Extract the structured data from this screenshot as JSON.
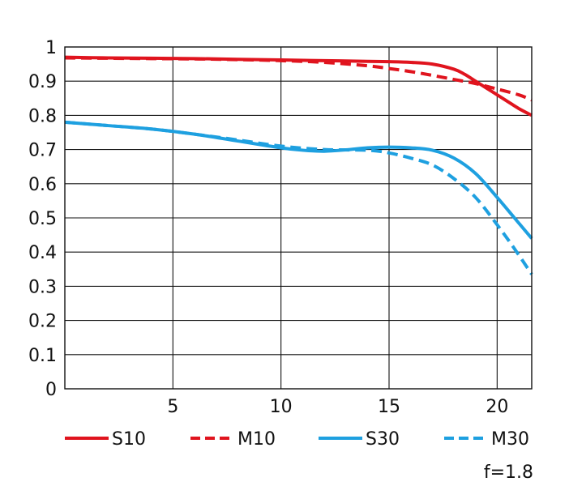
{
  "chart_data": {
    "type": "line",
    "title": "",
    "xlabel": "",
    "ylabel": "",
    "xlim": [
      0,
      21.6
    ],
    "ylim": [
      0,
      1
    ],
    "grid": true,
    "x_ticks": [
      5,
      10,
      15,
      20
    ],
    "y_ticks": [
      0,
      0.1,
      0.2,
      0.3,
      0.4,
      0.5,
      0.6,
      0.7,
      0.8,
      0.9,
      1
    ],
    "x_tick_labels": [
      "5",
      "10",
      "15",
      "20"
    ],
    "y_tick_labels": [
      "0",
      "0.1",
      "0.2",
      "0.3",
      "0.4",
      "0.5",
      "0.6",
      "0.7",
      "0.8",
      "0.9",
      "1"
    ],
    "annotation": "f=1.8",
    "legend_position": "bottom",
    "series": [
      {
        "name": "S10",
        "color": "#e0141e",
        "style": "solid",
        "points": [
          [
            0,
            0.97
          ],
          [
            2,
            0.968
          ],
          [
            4,
            0.967
          ],
          [
            6,
            0.966
          ],
          [
            8,
            0.964
          ],
          [
            10,
            0.962
          ],
          [
            12,
            0.96
          ],
          [
            14,
            0.958
          ],
          [
            15,
            0.957
          ],
          [
            16,
            0.955
          ],
          [
            17,
            0.95
          ],
          [
            18,
            0.935
          ],
          [
            18.5,
            0.92
          ],
          [
            19,
            0.9
          ],
          [
            19.5,
            0.88
          ],
          [
            20,
            0.86
          ],
          [
            20.5,
            0.84
          ],
          [
            21,
            0.82
          ],
          [
            21.6,
            0.8
          ]
        ]
      },
      {
        "name": "M10",
        "color": "#e0141e",
        "style": "dashed",
        "points": [
          [
            0,
            0.968
          ],
          [
            2,
            0.967
          ],
          [
            4,
            0.966
          ],
          [
            6,
            0.965
          ],
          [
            8,
            0.963
          ],
          [
            10,
            0.96
          ],
          [
            12,
            0.955
          ],
          [
            14,
            0.945
          ],
          [
            15,
            0.937
          ],
          [
            16,
            0.928
          ],
          [
            17,
            0.917
          ],
          [
            18,
            0.905
          ],
          [
            19,
            0.893
          ],
          [
            20,
            0.877
          ],
          [
            21,
            0.86
          ],
          [
            21.6,
            0.845
          ]
        ]
      },
      {
        "name": "S30",
        "color": "#1ea0e0",
        "style": "solid",
        "points": [
          [
            0,
            0.78
          ],
          [
            2,
            0.77
          ],
          [
            4,
            0.76
          ],
          [
            6,
            0.745
          ],
          [
            8,
            0.725
          ],
          [
            10,
            0.705
          ],
          [
            11,
            0.698
          ],
          [
            12,
            0.695
          ],
          [
            13,
            0.699
          ],
          [
            14,
            0.705
          ],
          [
            15,
            0.707
          ],
          [
            16,
            0.705
          ],
          [
            17,
            0.698
          ],
          [
            18,
            0.675
          ],
          [
            19,
            0.63
          ],
          [
            20,
            0.56
          ],
          [
            20.8,
            0.5
          ],
          [
            21.6,
            0.44
          ]
        ]
      },
      {
        "name": "M30",
        "color": "#1ea0e0",
        "style": "dashed",
        "points": [
          [
            0,
            0.78
          ],
          [
            2,
            0.77
          ],
          [
            4,
            0.76
          ],
          [
            6,
            0.745
          ],
          [
            8,
            0.728
          ],
          [
            10,
            0.71
          ],
          [
            12,
            0.7
          ],
          [
            14,
            0.698
          ],
          [
            15,
            0.69
          ],
          [
            16,
            0.675
          ],
          [
            17,
            0.655
          ],
          [
            18,
            0.615
          ],
          [
            19,
            0.56
          ],
          [
            20,
            0.48
          ],
          [
            20.8,
            0.41
          ],
          [
            21.6,
            0.335
          ]
        ]
      }
    ]
  }
}
